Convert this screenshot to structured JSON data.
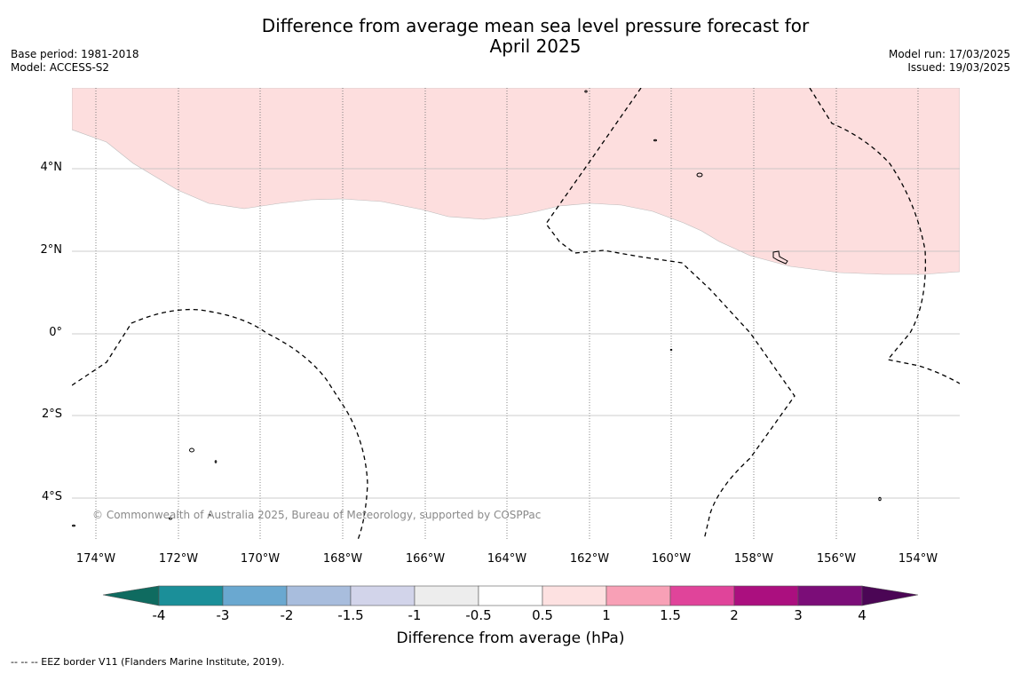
{
  "title_line1": "Difference from average mean sea level pressure forecast for",
  "title_line2": "April 2025",
  "base_period": "Base period: 1981-2018",
  "model": "Model: ACCESS-S2",
  "model_run": "Model run: 17/03/2025",
  "issued": "Issued: 19/03/2025",
  "copyright": "© Commonwealth of Australia 2025, Bureau of Meteorology, supported by COSPPac",
  "footer": "--  --  -- EEZ border V11 (Flanders Marine Institute, 2019).",
  "lon_labels": [
    "174°W",
    "172°W",
    "170°W",
    "168°W",
    "166°W",
    "164°W",
    "162°W",
    "160°W",
    "158°W",
    "156°W",
    "154°W"
  ],
  "lat_labels": [
    "4°N",
    "2°N",
    "0°",
    "2°S",
    "4°S"
  ],
  "colorbar": {
    "label": "Difference from average (hPa)",
    "ticks": [
      "-4",
      "-3",
      "-2",
      "-1.5",
      "-1",
      "-0.5",
      "0.5",
      "1",
      "1.5",
      "2",
      "3",
      "4"
    ],
    "colors": [
      "#0f6b60",
      "#1b8f99",
      "#6aa8d0",
      "#a8bddd",
      "#d2d4ea",
      "#ededed",
      "#ffffff",
      "#fde1e1",
      "#f8a0b6",
      "#e0449a",
      "#ab0f7f",
      "#7b0d78",
      "#4b0655"
    ]
  },
  "shading_color": "#fddede"
}
